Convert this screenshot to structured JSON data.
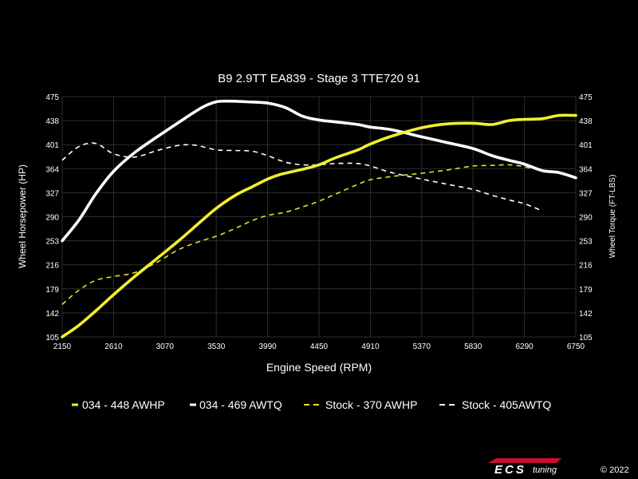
{
  "chart_data": {
    "type": "line",
    "title": "B9 2.9TT EA839 - Stage 3 TTE720 91",
    "xlabel": "Engine Speed (RPM)",
    "ylabel_left": "Wheel Horsepower (HP)",
    "ylabel_right": "Wheel Torque (FT-LBS)",
    "xlim": [
      2150,
      6750
    ],
    "ylim": [
      105,
      475
    ],
    "x_ticks": [
      "2150",
      "2610",
      "3070",
      "3530",
      "3990",
      "4450",
      "4910",
      "5370",
      "5830",
      "6290",
      "6750"
    ],
    "y_ticks": [
      "105",
      "142",
      "179",
      "216",
      "253",
      "290",
      "327",
      "364",
      "401",
      "438",
      "475"
    ],
    "grid": true,
    "legend_position": "bottom",
    "series": [
      {
        "name": "034 - 448 AWHP",
        "color": "#f2ee2e",
        "style": "solid",
        "x": [
          2150,
          2300,
          2450,
          2610,
          2800,
          3000,
          3200,
          3400,
          3530,
          3700,
          3850,
          3990,
          4100,
          4300,
          4450,
          4600,
          4800,
          4910,
          5100,
          5370,
          5600,
          5830,
          6000,
          6150,
          6290,
          6450,
          6600,
          6750
        ],
        "y": [
          105,
          123,
          145,
          170,
          198,
          226,
          254,
          284,
          303,
          323,
          336,
          348,
          355,
          363,
          370,
          381,
          393,
          402,
          414,
          427,
          433,
          434,
          432,
          438,
          440,
          441,
          446,
          446
        ]
      },
      {
        "name": "034 - 469 AWTQ",
        "color": "#ffffff",
        "style": "solid",
        "x": [
          2150,
          2300,
          2450,
          2610,
          2800,
          3000,
          3200,
          3400,
          3530,
          3650,
          3800,
          3990,
          4150,
          4300,
          4450,
          4600,
          4800,
          4910,
          5100,
          5370,
          5600,
          5830,
          6000,
          6150,
          6290,
          6450,
          6600,
          6750
        ],
        "y": [
          253,
          285,
          325,
          360,
          389,
          413,
          436,
          458,
          467,
          468,
          467,
          465,
          458,
          445,
          439,
          436,
          432,
          428,
          424,
          413,
          404,
          395,
          384,
          377,
          371,
          361,
          358,
          350
        ]
      },
      {
        "name": "Stock - 370 AWHP",
        "color": "#e3df2b",
        "style": "dashed",
        "x": [
          2150,
          2300,
          2450,
          2610,
          2800,
          3000,
          3200,
          3400,
          3530,
          3700,
          3850,
          3990,
          4150,
          4300,
          4450,
          4600,
          4800,
          4910,
          5100,
          5370,
          5600,
          5830,
          6000,
          6150,
          6290,
          6350
        ],
        "y": [
          155,
          177,
          192,
          198,
          204,
          220,
          240,
          253,
          260,
          272,
          284,
          292,
          297,
          305,
          314,
          325,
          340,
          347,
          352,
          357,
          362,
          368,
          369,
          370,
          367,
          364
        ]
      },
      {
        "name": "Stock - 405AWTQ",
        "color": "#ffffff",
        "style": "dashed",
        "x": [
          2150,
          2300,
          2450,
          2610,
          2800,
          3000,
          3200,
          3350,
          3530,
          3700,
          3850,
          3990,
          4150,
          4300,
          4450,
          4600,
          4800,
          4910,
          5100,
          5370,
          5600,
          5830,
          6000,
          6150,
          6290,
          6450
        ],
        "y": [
          377,
          398,
          403,
          387,
          382,
          392,
          400,
          400,
          393,
          392,
          391,
          384,
          374,
          370,
          370,
          372,
          372,
          368,
          358,
          348,
          340,
          332,
          323,
          316,
          310,
          299
        ]
      }
    ]
  },
  "branding": {
    "logo_text": "ECS",
    "tuning_text": "tuning",
    "copyright": "© 2022"
  }
}
